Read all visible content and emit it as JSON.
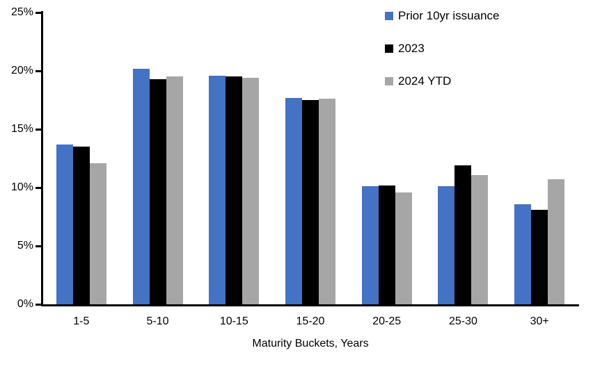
{
  "chart_data": {
    "type": "bar",
    "title": "",
    "xlabel": "Maturity Buckets, Years",
    "ylabel": "",
    "ylim": [
      0,
      25
    ],
    "yticks": [
      0,
      5,
      10,
      15,
      20,
      25
    ],
    "ytick_suffix": "%",
    "grid": false,
    "legend_position": "top-right",
    "background_color": "#ffffff",
    "axis_color": "#000000",
    "categories": [
      "1-5",
      "5-10",
      "10-15",
      "15-20",
      "20-25",
      "25-30",
      "30+"
    ],
    "series": [
      {
        "name": "Prior 10yr issuance",
        "color": "#4472C4",
        "values": [
          13.7,
          20.2,
          19.6,
          17.7,
          10.1,
          10.1,
          8.6
        ]
      },
      {
        "name": "2023",
        "color": "#000000",
        "values": [
          13.5,
          19.3,
          19.5,
          17.5,
          10.2,
          11.9,
          8.1
        ]
      },
      {
        "name": "2024 YTD",
        "color": "#A6A6A6",
        "values": [
          12.1,
          19.5,
          19.4,
          17.6,
          9.6,
          11.1,
          10.7
        ]
      }
    ]
  }
}
